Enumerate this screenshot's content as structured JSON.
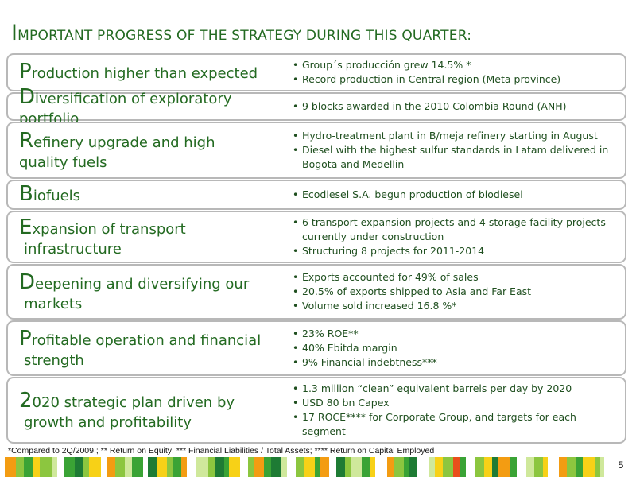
{
  "title": {
    "first_letter": "I",
    "rest": "MPORTANT PROGRESS OF THE STRATEGY  DURING THIS QUARTER:"
  },
  "rows": [
    {
      "letter": "P",
      "line1": "roduction higher than expected",
      "line2": "",
      "bullets": [
        "Group´s producción grew 14.5% *",
        "Record production in Central region (Meta province)"
      ]
    },
    {
      "letter": "D",
      "line1": "iversification of exploratory portfolio",
      "line2": "",
      "bullets": [
        "9 blocks awarded in the 2010 Colombia Round (ANH)"
      ]
    },
    {
      "letter": "R",
      "line1": "efinery upgrade and high",
      "line2": "quality fuels",
      "bullets": [
        "Hydro-treatment plant in B/meja refinery starting in August",
        "Diesel with the highest  sulfur standards in Latam delivered  in Bogota  and Medellin"
      ]
    },
    {
      "letter": "B",
      "line1": "iofuels",
      "line2": "",
      "bullets": [
        "Ecodiesel S.A. begun production of biodiesel"
      ]
    },
    {
      "letter": "E",
      "line1": "xpansion of transport",
      "line2": "infrastructure",
      "bullets": [
        "6 transport  expansion projects  and  4 storage facility projects currently under construction",
        "Structuring 8 projects for 2011-2014"
      ]
    },
    {
      "letter": "D",
      "line1": "eepening and diversifying our",
      "line2": "markets",
      "bullets": [
        "Exports accounted  for 49% of sales",
        "20.5% of exports shipped to Asia and Far East",
        "Volume sold increased 16.8 %*"
      ]
    },
    {
      "letter": "P",
      "line1": "rofitable operation and  financial",
      "line2": "strength",
      "bullets": [
        "23% ROE**",
        "40% Ebitda margin",
        "9% Financial indebtness***"
      ]
    },
    {
      "letter": "2",
      "line1": "020 strategic plan driven by",
      "line2": "growth and profitability",
      "bullets": [
        "1.3 million “clean” equivalent  barrels per day  by 2020",
        "USD 80  bn Capex",
        "17 ROCE**** for Corporate Group, and targets for each segment"
      ]
    }
  ],
  "footnote": "*Compared to 2Q/2009 ; ** Return on Equity; *** Financial Liabilities  / Total Assets; **** Return on Capital Employed",
  "page_number": "5",
  "colors": {
    "title_green": "#236a21",
    "text_green": "#1f4f1f",
    "box_border": "#b8b8b8",
    "stripe": [
      "#ffffff",
      "#f39c12",
      "#8cc63f",
      "#3aa335",
      "#f7d117",
      "#cfe89b",
      "#1e7b34",
      "#e94e1b"
    ]
  }
}
